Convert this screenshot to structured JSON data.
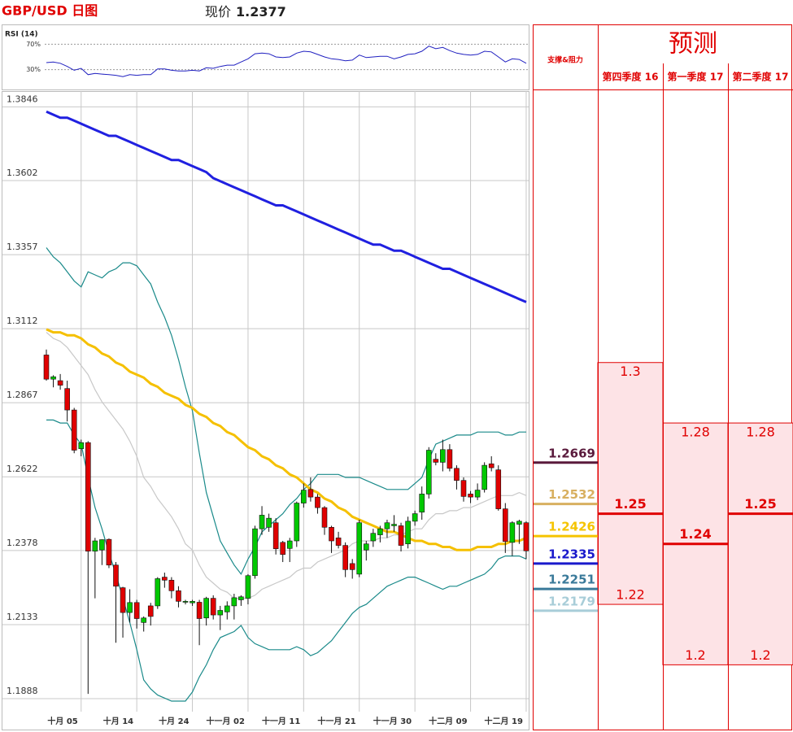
{
  "header": {
    "title": "GBP/USD 日图",
    "price_label": "现价",
    "price": 1.2377
  },
  "chart_data": [
    {
      "type": "candlestick",
      "categories": [
        null,
        null,
        null,
        null,
        null,
        "十月 05",
        null,
        null,
        null,
        null,
        null,
        null,
        null,
        "十月 14",
        null,
        null,
        null,
        null,
        null,
        null,
        null,
        "十月 24",
        null,
        null,
        null,
        null,
        null,
        null,
        null,
        "十一月 02",
        null,
        null,
        null,
        null,
        null,
        null,
        null,
        "十一月 11",
        null,
        null,
        null,
        null,
        null,
        null,
        null,
        "十一月 21",
        null,
        null,
        null,
        null,
        null,
        null,
        null,
        "十一月 30",
        null,
        null,
        null,
        null,
        null,
        null,
        null,
        "十二月 09",
        null,
        null,
        null,
        null,
        null,
        null,
        null,
        "十二月 19"
      ],
      "ohlc": [
        [
          1.3025,
          1.3043,
          1.294,
          1.2945
        ],
        [
          1.2945,
          1.2958,
          1.2918,
          1.2953
        ],
        [
          1.294,
          1.2962,
          1.291,
          1.2925
        ],
        [
          1.2914,
          1.294,
          1.2805,
          1.2843
        ],
        [
          1.2843,
          1.285,
          1.27,
          1.271
        ],
        [
          1.2715,
          1.2745,
          1.269,
          1.2735
        ],
        [
          1.2735,
          1.274,
          1.1904,
          1.2376
        ],
        [
          1.2376,
          1.242,
          1.222,
          1.241
        ],
        [
          1.238,
          1.2415,
          1.233,
          1.2414
        ],
        [
          1.2415,
          1.2418,
          1.232,
          1.233
        ],
        [
          1.233,
          1.234,
          1.2073,
          1.226
        ],
        [
          1.2255,
          1.2258,
          1.209,
          1.2173
        ],
        [
          1.2173,
          1.225,
          1.214,
          1.2206
        ],
        [
          1.2206,
          1.2215,
          1.212,
          1.2153
        ],
        [
          1.214,
          1.216,
          1.211,
          1.2155
        ],
        [
          1.2195,
          1.2205,
          1.213,
          1.216
        ],
        [
          1.2195,
          1.229,
          1.2185,
          1.2285
        ],
        [
          1.229,
          1.2305,
          1.2255,
          1.228
        ],
        [
          1.228,
          1.229,
          1.222,
          1.2245
        ],
        [
          1.2245,
          1.226,
          1.219,
          1.221
        ],
        [
          1.2207,
          1.2215,
          1.22,
          1.221
        ],
        [
          1.2205,
          1.2215,
          1.2195,
          1.221
        ],
        [
          1.2207,
          1.2215,
          1.2065,
          1.2153
        ],
        [
          1.2155,
          1.2225,
          1.213,
          1.222
        ],
        [
          1.222,
          1.223,
          1.215,
          1.2165
        ],
        [
          1.2165,
          1.2195,
          1.2115,
          1.218
        ],
        [
          1.2175,
          1.221,
          1.215,
          1.2195
        ],
        [
          1.2195,
          1.2235,
          1.215,
          1.2222
        ],
        [
          1.2215,
          1.223,
          1.2195,
          1.2225
        ],
        [
          1.222,
          1.23,
          1.22,
          1.2295
        ],
        [
          1.2295,
          1.246,
          1.2285,
          1.245
        ],
        [
          1.245,
          1.2525,
          1.243,
          1.2495
        ],
        [
          1.2455,
          1.25,
          1.244,
          1.2485
        ],
        [
          1.247,
          1.2485,
          1.2365,
          1.2384
        ],
        [
          1.2405,
          1.241,
          1.234,
          1.2365
        ],
        [
          1.2385,
          1.242,
          1.234,
          1.241
        ],
        [
          1.241,
          1.254,
          1.239,
          1.2535
        ],
        [
          1.2535,
          1.26,
          1.252,
          1.2578
        ],
        [
          1.258,
          1.262,
          1.254,
          1.2555
        ],
        [
          1.2555,
          1.2565,
          1.25,
          1.252
        ],
        [
          1.252,
          1.2525,
          1.243,
          1.2455
        ],
        [
          1.2455,
          1.246,
          1.237,
          1.241
        ],
        [
          1.242,
          1.244,
          1.2385,
          1.2395
        ],
        [
          1.2395,
          1.2405,
          1.229,
          1.2315
        ],
        [
          1.2335,
          1.235,
          1.2285,
          1.2315
        ],
        [
          1.23,
          1.248,
          1.229,
          1.247
        ],
        [
          1.238,
          1.241,
          1.2345,
          1.24
        ],
        [
          1.241,
          1.245,
          1.239,
          1.2435
        ],
        [
          1.243,
          1.246,
          1.2405,
          1.245
        ],
        [
          1.245,
          1.248,
          1.242,
          1.247
        ],
        [
          1.246,
          1.2495,
          1.244,
          1.2465
        ],
        [
          1.246,
          1.247,
          1.2375,
          1.2395
        ],
        [
          1.24,
          1.249,
          1.2385,
          1.2475
        ],
        [
          1.2475,
          1.251,
          1.246,
          1.25
        ],
        [
          1.2505,
          1.259,
          1.248,
          1.2565
        ],
        [
          1.2565,
          1.272,
          1.255,
          1.271
        ],
        [
          1.268,
          1.27,
          1.266,
          1.267
        ],
        [
          1.267,
          1.2745,
          1.264,
          1.2712
        ],
        [
          1.2712,
          1.273,
          1.264,
          1.265
        ],
        [
          1.265,
          1.266,
          1.258,
          1.261
        ],
        [
          1.261,
          1.262,
          1.254,
          1.2557
        ],
        [
          1.2565,
          1.2575,
          1.2535,
          1.2555
        ],
        [
          1.2555,
          1.26,
          1.2545,
          1.2578
        ],
        [
          1.258,
          1.267,
          1.257,
          1.266
        ],
        [
          1.2665,
          1.269,
          1.264,
          1.2652
        ],
        [
          1.2645,
          1.266,
          1.251,
          1.2516
        ],
        [
          1.2516,
          1.2535,
          1.237,
          1.2408
        ],
        [
          1.2405,
          1.2475,
          1.236,
          1.247
        ],
        [
          1.2465,
          1.248,
          1.24,
          1.2475
        ],
        [
          1.247,
          1.2475,
          1.235,
          1.2377
        ]
      ],
      "up_color": "#00c800",
      "down_color": "#e00000",
      "lines": [
        {
          "color": "#c8c8c8",
          "style": "thin",
          "values": [
            1.31,
            1.308,
            1.307,
            1.305,
            1.302,
            1.299,
            1.296,
            1.291,
            1.287,
            1.284,
            1.281,
            1.278,
            1.274,
            1.269,
            1.262,
            1.259,
            1.255,
            1.252,
            1.249,
            1.245,
            1.24,
            1.238,
            1.233,
            1.229,
            1.227,
            1.225,
            1.224,
            1.222,
            1.222,
            1.222,
            1.223,
            1.225,
            1.226,
            1.227,
            1.228,
            1.229,
            1.231,
            1.232,
            1.232,
            1.234,
            1.235,
            1.236,
            1.237,
            1.238,
            1.24,
            1.241,
            1.241,
            1.241,
            1.242,
            1.242,
            1.243,
            1.243,
            1.244,
            1.245,
            1.245,
            1.248,
            1.25,
            1.25,
            1.251,
            1.251,
            1.252,
            1.252,
            1.253,
            1.254,
            1.255,
            1.256,
            1.256,
            1.256,
            1.257,
            1.256
          ]
        },
        {
          "color": "#1a8a8a",
          "style": "thin",
          "values": [
            1.338,
            1.335,
            1.333,
            1.33,
            1.327,
            1.325,
            1.33,
            1.329,
            1.328,
            1.33,
            1.331,
            1.333,
            1.333,
            1.332,
            1.329,
            1.326,
            1.32,
            1.315,
            1.309,
            1.301,
            1.292,
            1.284,
            1.27,
            1.257,
            1.249,
            1.241,
            1.237,
            1.233,
            1.23,
            1.235,
            1.239,
            1.244,
            1.246,
            1.248,
            1.25,
            1.253,
            1.255,
            1.258,
            1.26,
            1.263,
            1.263,
            1.263,
            1.263,
            1.262,
            1.262,
            1.262,
            1.261,
            1.26,
            1.259,
            1.258,
            1.258,
            1.258,
            1.258,
            1.26,
            1.262,
            1.268,
            1.273,
            1.274,
            1.275,
            1.276,
            1.276,
            1.276,
            1.277,
            1.277,
            1.277,
            1.277,
            1.276,
            1.276,
            1.277,
            1.277
          ]
        },
        {
          "color": "#1a8a8a",
          "style": "thin",
          "values": [
            1.281,
            1.281,
            1.28,
            1.28,
            1.276,
            1.273,
            1.262,
            1.252,
            1.245,
            1.237,
            1.23,
            1.222,
            1.214,
            1.205,
            1.195,
            1.192,
            1.19,
            1.189,
            1.188,
            1.188,
            1.188,
            1.191,
            1.196,
            1.2,
            1.205,
            1.209,
            1.21,
            1.211,
            1.213,
            1.209,
            1.207,
            1.206,
            1.205,
            1.205,
            1.205,
            1.205,
            1.206,
            1.205,
            1.203,
            1.204,
            1.206,
            1.208,
            1.211,
            1.214,
            1.217,
            1.219,
            1.22,
            1.222,
            1.224,
            1.226,
            1.227,
            1.228,
            1.229,
            1.229,
            1.228,
            1.227,
            1.226,
            1.225,
            1.226,
            1.226,
            1.227,
            1.228,
            1.229,
            1.23,
            1.232,
            1.235,
            1.236,
            1.236,
            1.236,
            1.235
          ]
        },
        {
          "color": "#f5c000",
          "style": "thick",
          "values": [
            1.311,
            1.31,
            1.31,
            1.309,
            1.309,
            1.308,
            1.306,
            1.305,
            1.303,
            1.302,
            1.3,
            1.299,
            1.297,
            1.296,
            1.295,
            1.293,
            1.292,
            1.29,
            1.289,
            1.288,
            1.286,
            1.285,
            1.283,
            1.282,
            1.28,
            1.279,
            1.277,
            1.276,
            1.274,
            1.272,
            1.271,
            1.269,
            1.268,
            1.266,
            1.265,
            1.263,
            1.262,
            1.26,
            1.258,
            1.257,
            1.255,
            1.254,
            1.252,
            1.251,
            1.249,
            1.248,
            1.247,
            1.246,
            1.245,
            1.244,
            1.244,
            1.243,
            1.242,
            1.241,
            1.241,
            1.24,
            1.24,
            1.239,
            1.239,
            1.238,
            1.238,
            1.238,
            1.239,
            1.239,
            1.239,
            1.24,
            1.24,
            1.241,
            1.241,
            1.242
          ]
        },
        {
          "color": "#2020e0",
          "style": "thick",
          "values": [
            1.383,
            1.382,
            1.381,
            1.381,
            1.38,
            1.379,
            1.378,
            1.377,
            1.376,
            1.375,
            1.375,
            1.374,
            1.373,
            1.372,
            1.371,
            1.37,
            1.369,
            1.368,
            1.367,
            1.367,
            1.366,
            1.365,
            1.364,
            1.363,
            1.361,
            1.36,
            1.359,
            1.358,
            1.357,
            1.356,
            1.355,
            1.354,
            1.353,
            1.352,
            1.352,
            1.351,
            1.35,
            1.349,
            1.348,
            1.347,
            1.346,
            1.345,
            1.344,
            1.343,
            1.342,
            1.341,
            1.34,
            1.339,
            1.339,
            1.338,
            1.337,
            1.337,
            1.336,
            1.335,
            1.334,
            1.333,
            1.332,
            1.331,
            1.331,
            1.33,
            1.329,
            1.328,
            1.327,
            1.326,
            1.325,
            1.324,
            1.323,
            1.322,
            1.321,
            1.32
          ]
        }
      ],
      "ylim": [
        1.1845,
        1.3898
      ],
      "yticks": [
        1.3846,
        1.3602,
        1.3357,
        1.3112,
        1.2867,
        1.2622,
        1.2378,
        1.2133,
        1.1888
      ],
      "grid": true,
      "levels": {
        "title": "支撑&阻力",
        "items": [
          {
            "value": 1.2669,
            "color": "#5a1a3c"
          },
          {
            "value": 1.2532,
            "color": "#d8b060"
          },
          {
            "value": 1.2426,
            "color": "#f5c400"
          },
          {
            "value": 1.2335,
            "color": "#1a1acc"
          },
          {
            "value": 1.2251,
            "color": "#3a7a9a"
          },
          {
            "value": 1.2179,
            "color": "#a8cdd8"
          }
        ]
      },
      "forecast": {
        "title": "预测",
        "color": "#e00000",
        "fill": "#fde3e6",
        "columns": [
          {
            "name": "第四季度 16",
            "high": 1.3,
            "mid": 1.25,
            "low": 1.22
          },
          {
            "name": "第一季度 17",
            "high": 1.28,
            "mid": 1.24,
            "low": 1.2
          },
          {
            "name": "第二季度 17",
            "high": 1.28,
            "mid": 1.25,
            "low": 1.2
          }
        ]
      }
    },
    {
      "type": "line",
      "title": "RSI (14)",
      "color": "#2020c0",
      "values": [
        41,
        42,
        40,
        35,
        29,
        32,
        22,
        24,
        23,
        22,
        21,
        19,
        22,
        21,
        22,
        22,
        31,
        31,
        29,
        28,
        28,
        29,
        28,
        33,
        32,
        35,
        37,
        37,
        42,
        47,
        55,
        56,
        55,
        50,
        49,
        50,
        56,
        59,
        58,
        54,
        50,
        47,
        46,
        44,
        45,
        53,
        49,
        50,
        51,
        51,
        47,
        50,
        54,
        55,
        59,
        67,
        63,
        65,
        60,
        56,
        54,
        53,
        54,
        59,
        58,
        50,
        42,
        47,
        46,
        40
      ],
      "ylim": [
        0,
        100
      ],
      "yticks": [
        {
          "value": 70,
          "label": "70%"
        },
        {
          "value": 30,
          "label": "30%"
        }
      ]
    }
  ]
}
